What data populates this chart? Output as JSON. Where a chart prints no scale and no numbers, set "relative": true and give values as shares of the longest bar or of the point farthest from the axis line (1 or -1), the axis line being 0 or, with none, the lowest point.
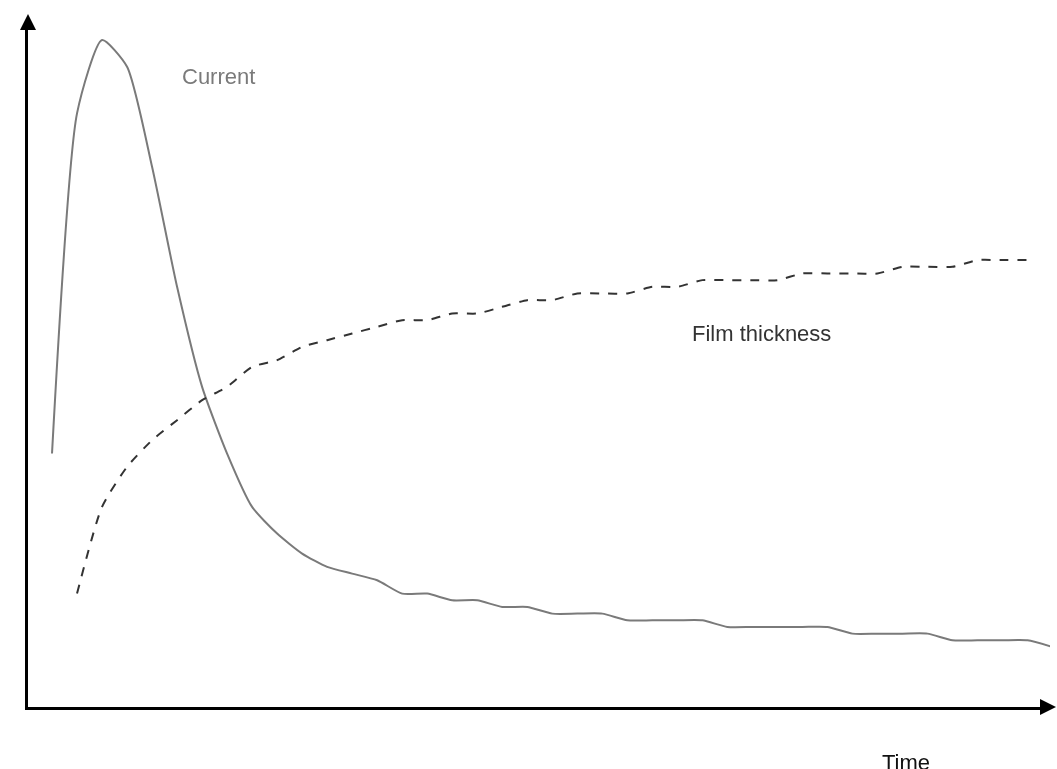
{
  "chart_data": {
    "type": "line",
    "relative": true,
    "xlabel": "Time",
    "legend": false,
    "grid": false,
    "categories": [
      null,
      null,
      null,
      null,
      null,
      null,
      null,
      null,
      null,
      null,
      null,
      null,
      null,
      null,
      null,
      null,
      null,
      null,
      null,
      null,
      null,
      null,
      null,
      null,
      null,
      null,
      null,
      null,
      null,
      null,
      null,
      null,
      null,
      null,
      null,
      null,
      null,
      null,
      null,
      null,
      null
    ],
    "series": [
      {
        "name": "Current",
        "color": "#7a7a7a",
        "line_style": "solid",
        "values": [
          0.38,
          0.89,
          1,
          0.96,
          0.81,
          0.63,
          0.48,
          0.38,
          0.3,
          0.26,
          0.23,
          0.21,
          0.2,
          0.19,
          0.17,
          0.17,
          0.16,
          0.16,
          0.15,
          0.15,
          0.14,
          0.14,
          0.14,
          0.13,
          0.13,
          0.13,
          0.13,
          0.12,
          0.12,
          0.12,
          0.12,
          0.12,
          0.11,
          0.11,
          0.11,
          0.11,
          0.1,
          0.1,
          0.1,
          0.1,
          0.09
        ]
      },
      {
        "name": "Film thickness",
        "color": "#333333",
        "line_style": "dashed",
        "values": [
          null,
          0.17,
          0.3,
          0.36,
          0.4,
          0.43,
          0.46,
          0.48,
          0.51,
          0.52,
          0.54,
          0.55,
          0.56,
          0.57,
          0.58,
          0.58,
          0.59,
          0.59,
          0.6,
          0.61,
          0.61,
          0.62,
          0.62,
          0.62,
          0.63,
          0.63,
          0.64,
          0.64,
          0.64,
          0.64,
          0.65,
          0.65,
          0.65,
          0.65,
          0.66,
          0.66,
          0.66,
          0.67,
          0.67,
          0.67,
          null
        ]
      }
    ]
  }
}
